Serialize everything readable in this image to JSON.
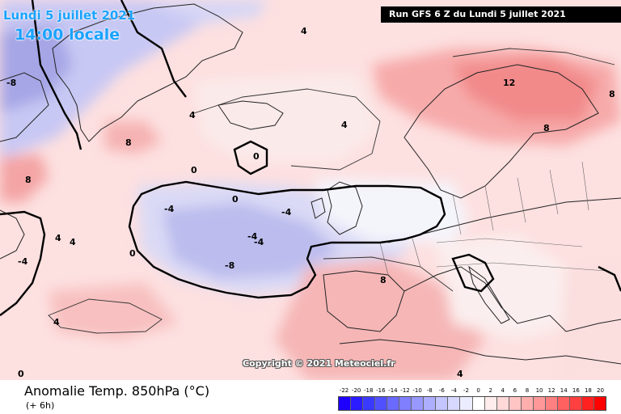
{
  "header": {
    "date": "Lundi 5 juillet 2021",
    "time": "14:00 locale",
    "run": "Run GFS 6 Z du Lundi 5 juillet 2021"
  },
  "copyright": "Copyright © 2021 Meteociel.fr",
  "footer": {
    "variable": "Anomalie Temp. 850hPa (°C)",
    "offset": "(+ 6h)"
  },
  "legend": {
    "values": [
      "-22",
      "-20",
      "-18",
      "-16",
      "-14",
      "-12",
      "-10",
      "-8",
      "-6",
      "-4",
      "-2",
      "0",
      "2",
      "4",
      "6",
      "8",
      "10",
      "12",
      "14",
      "16",
      "18",
      "20"
    ],
    "colors": [
      "#1e00ff",
      "#2a1cff",
      "#3a3aff",
      "#5050ff",
      "#6a6aff",
      "#8080ff",
      "#9898ff",
      "#aeaeff",
      "#c4c4ff",
      "#d8d8ff",
      "#ececff",
      "#ffffff",
      "#ffecec",
      "#ffd8d8",
      "#ffc4c4",
      "#ffaeae",
      "#ff9898",
      "#ff8080",
      "#ff6060",
      "#ff4040",
      "#ff2020",
      "#ff0000"
    ]
  },
  "map_labels": [
    "-4",
    "-8",
    "-8",
    "-4",
    "-4",
    "-4",
    "-4",
    "0",
    "0",
    "0",
    "0",
    "0",
    "4",
    "4",
    "4",
    "4",
    "4",
    "4",
    "4",
    "8",
    "8",
    "8",
    "8",
    "8",
    "12"
  ]
}
